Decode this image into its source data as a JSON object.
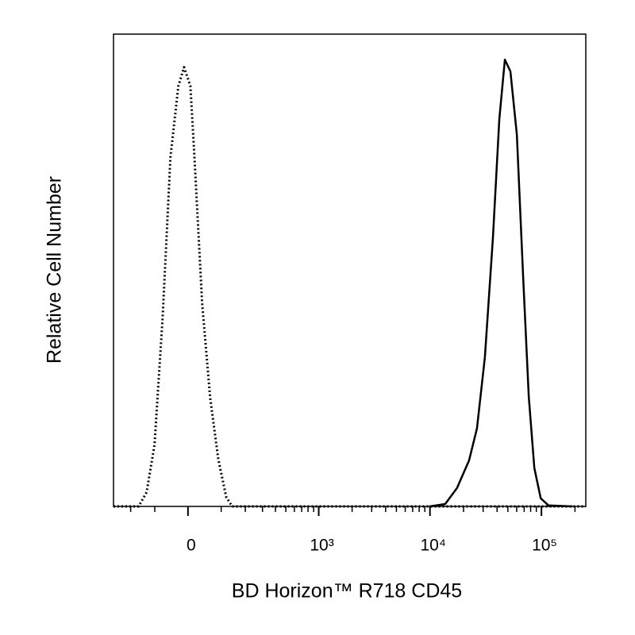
{
  "chart_data": {
    "type": "line",
    "x_label": "BD Horizon™ R718 CD45",
    "y_label": "Relative Cell Number",
    "x_scale": "biexponential",
    "xlim": [
      -300,
      250000
    ],
    "ylim": [
      0,
      100
    ],
    "xticks": [
      {
        "value": 0,
        "label": "0"
      },
      {
        "value": 1000,
        "label": "10³"
      },
      {
        "value": 10000,
        "label": "10⁴"
      },
      {
        "value": 100000,
        "label": "10⁵"
      }
    ],
    "xminorticks": [
      -200,
      -100,
      100,
      200,
      300,
      400,
      500,
      600,
      700,
      800,
      900,
      2000,
      3000,
      4000,
      5000,
      6000,
      7000,
      8000,
      9000,
      20000,
      30000,
      40000,
      50000,
      60000,
      70000,
      80000,
      90000,
      200000
    ],
    "series": [
      {
        "color": "#000000",
        "line_style": "dotted",
        "x": [
          -300,
          -163,
          -130,
          -101,
          -74,
          -50,
          -27,
          -11,
          6.7,
          18,
          40,
          64,
          90,
          118,
          141,
          250000
        ],
        "values": [
          0,
          0,
          3,
          13,
          40,
          74,
          89,
          93,
          89,
          74,
          43,
          23,
          10,
          2,
          0,
          0
        ]
      },
      {
        "color": "#000000",
        "line_style": "solid",
        "x": [
          9900,
          13700,
          17500,
          22400,
          26400,
          31100,
          36700,
          41900,
          47000,
          52700,
          60200,
          68600,
          77000,
          86400,
          98600,
          116000,
          190000
        ],
        "values": [
          0,
          0.5,
          3.9,
          9.7,
          16.5,
          31.6,
          56.8,
          82,
          94.6,
          92.1,
          78.7,
          48.4,
          23.2,
          8.1,
          1.7,
          0.2,
          0
        ]
      }
    ]
  }
}
